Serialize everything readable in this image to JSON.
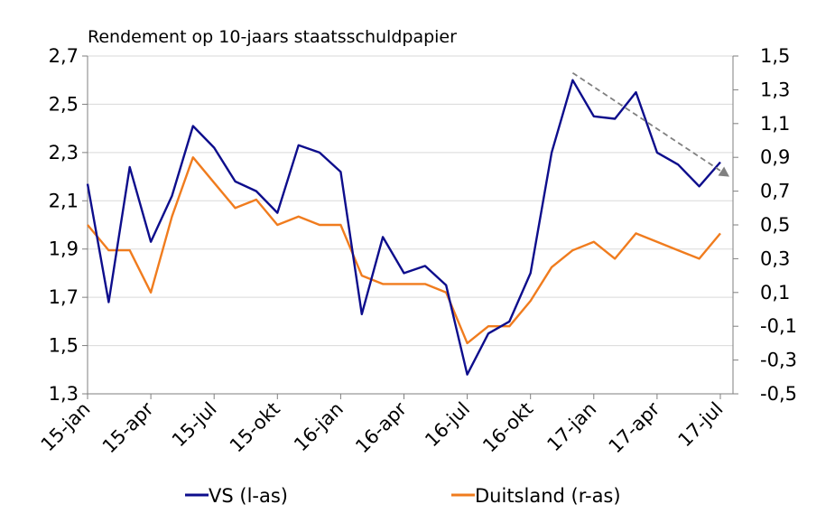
{
  "chart_data": {
    "type": "line",
    "title": "Rendement op 10-jaars staatsschuldpapier",
    "x_tick_labels": [
      "15-jan",
      "15-apr",
      "15-jul",
      "15-okt",
      "16-jan",
      "16-apr",
      "16-jul",
      "16-okt",
      "17-jan",
      "17-apr",
      "17-jul"
    ],
    "y_left": {
      "ticks": [
        "1,3",
        "1,5",
        "1,7",
        "1,9",
        "2,1",
        "2,3",
        "2,5",
        "2,7"
      ],
      "range": [
        1.3,
        2.7
      ]
    },
    "y_right": {
      "ticks": [
        "-0,5",
        "-0,3",
        "-0,1",
        "0,1",
        "0,3",
        "0,5",
        "0,7",
        "0,9",
        "1,1",
        "1,3",
        "1,5"
      ],
      "range": [
        -0.5,
        1.5
      ]
    },
    "grid": "horizontal",
    "legend_position": "bottom",
    "series": [
      {
        "name": "VS (l-as)",
        "axis": "left",
        "color": "#0d0d8c",
        "x": [
          "15-jan",
          "15-feb",
          "15-mrt",
          "15-apr",
          "15-mei",
          "15-jun",
          "15-jul",
          "15-aug",
          "15-sep",
          "15-okt",
          "15-nov",
          "15-dec",
          "16-jan",
          "16-feb",
          "16-mrt",
          "16-apr",
          "16-mei",
          "16-jun",
          "16-jul",
          "16-aug",
          "16-sep",
          "16-okt",
          "16-nov",
          "16-dec",
          "17-jan",
          "17-feb",
          "17-mrt",
          "17-apr",
          "17-mei",
          "17-jun",
          "17-jul"
        ],
        "values": [
          2.17,
          1.68,
          2.24,
          1.93,
          2.12,
          2.41,
          2.32,
          2.18,
          2.14,
          2.05,
          2.33,
          2.3,
          2.22,
          1.63,
          1.95,
          1.8,
          1.83,
          1.75,
          1.38,
          1.55,
          1.6,
          1.8,
          2.3,
          2.6,
          2.45,
          2.44,
          2.55,
          2.3,
          2.25,
          2.16,
          2.26
        ]
      },
      {
        "name": "Duitsland (r-as)",
        "axis": "right",
        "color": "#f07c1e",
        "x": [
          "15-jan",
          "15-feb",
          "15-mrt",
          "15-apr",
          "15-mei",
          "15-jun",
          "15-jul",
          "15-aug",
          "15-sep",
          "15-okt",
          "15-nov",
          "15-dec",
          "16-jan",
          "16-feb",
          "16-mrt",
          "16-apr",
          "16-mei",
          "16-jun",
          "16-jul",
          "16-aug",
          "16-sep",
          "16-okt",
          "16-nov",
          "16-dec",
          "17-jan",
          "17-feb",
          "17-mrt",
          "17-apr",
          "17-mei",
          "17-jun",
          "17-jul"
        ],
        "values": [
          0.5,
          0.35,
          0.35,
          0.1,
          0.55,
          0.9,
          0.75,
          0.6,
          0.65,
          0.5,
          0.55,
          0.5,
          0.5,
          0.2,
          0.15,
          0.15,
          0.15,
          0.1,
          -0.2,
          -0.1,
          -0.1,
          0.05,
          0.25,
          0.35,
          0.4,
          0.3,
          0.45,
          0.4,
          0.35,
          0.3,
          0.45
        ]
      }
    ],
    "trend_annotation": {
      "from": {
        "x": "16-dec",
        "y_left": 2.63
      },
      "to": {
        "x": "17-jul",
        "y_left": 2.2
      },
      "style": "dashed-arrow",
      "color": "#808080"
    }
  }
}
